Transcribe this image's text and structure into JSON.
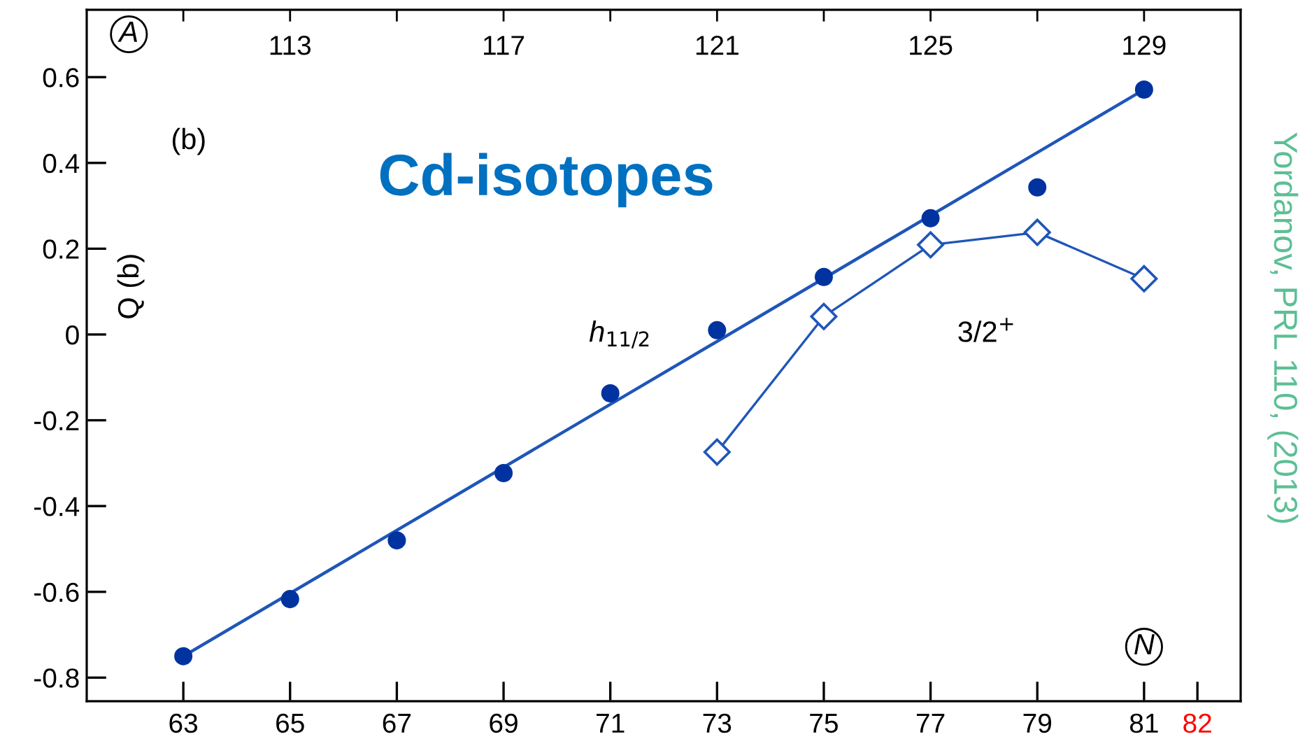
{
  "chart_data": {
    "type": "scatter",
    "ylabel": "Q (b)",
    "x": [
      63,
      65,
      67,
      69,
      71,
      73,
      75,
      77,
      79,
      81
    ],
    "series": [
      {
        "name": "h$_{11/2}$",
        "color": "#0033a0",
        "marker": "circle",
        "values": [
          -0.75,
          -0.617,
          -0.48,
          -0.323,
          -0.137,
          0.01,
          0.134,
          0.271,
          0.343,
          0.571
        ]
      },
      {
        "type": "line",
        "color": "#1f56b8",
        "marker": "none",
        "x": [
          63,
          81
        ],
        "values": [
          -0.75,
          0.571
        ]
      },
      {
        "name": "3/2$^{+}$",
        "type": "line",
        "color": "#1f56b8",
        "marker": "diamond",
        "x": [
          73,
          75,
          77,
          79,
          81
        ],
        "values": [
          -0.274,
          0.042,
          0.209,
          0.238,
          0.13
        ]
      }
    ],
    "xlim": [
      61.19,
      82.81
    ],
    "xticks": [
      63,
      65,
      67,
      69,
      71,
      73,
      75,
      77,
      79,
      81,
      82
    ],
    "x2lim": [
      109.19,
      130.81
    ],
    "x2ticks": [
      {
        "value": 111,
        "label": null
      },
      113,
      {
        "value": 115,
        "label": null
      },
      117,
      {
        "value": 119,
        "label": null
      },
      121,
      {
        "value": 123,
        "label": null
      },
      125,
      {
        "value": 127,
        "label": null
      },
      129
    ],
    "ylim": [
      -0.855,
      0.757
    ],
    "yticks": [
      {
        "value": -0.8,
        "label": "-0.8"
      },
      {
        "value": -0.6,
        "label": "-0.6"
      },
      {
        "value": -0.4,
        "label": "-0.4"
      },
      {
        "value": -0.2,
        "label": "-0.2"
      },
      0,
      0.2,
      0.4,
      0.6
    ],
    "annotations": [
      "A",
      "(b)",
      "Cd-isotopes",
      "N",
      "Yordanov, PRL 110, (2013)"
    ],
    "grid": false,
    "legend": false
  }
}
